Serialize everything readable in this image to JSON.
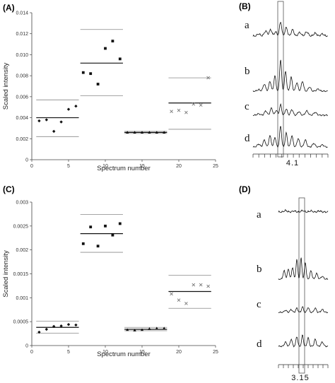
{
  "chart_data": [
    {
      "panel": "(A)",
      "type": "scatter",
      "xlabel": "Spectrum number",
      "ylabel": "Scaled intensity",
      "xlim": [
        0,
        25
      ],
      "ylim": [
        0,
        0.014
      ],
      "xticks": [
        "0",
        "5",
        "10",
        "15",
        "20",
        "25"
      ],
      "yticks": [
        "0",
        "0.002",
        "0.004",
        "0.006",
        "0.008",
        "0.010",
        "0.012",
        "0.014"
      ],
      "groups": [
        {
          "marker": "diamond",
          "x": [
            1,
            2,
            3,
            4,
            5,
            6
          ],
          "y": [
            0.0037,
            0.0038,
            0.0027,
            0.0036,
            0.0048,
            0.0051
          ],
          "mean": 0.004,
          "lower": 0.0022,
          "upper": 0.0057,
          "x_range": [
            1,
            6
          ]
        },
        {
          "marker": "square",
          "x": [
            7,
            8,
            9,
            10,
            11,
            12
          ],
          "y": [
            0.0083,
            0.0082,
            0.0072,
            0.0106,
            0.0113,
            0.0096
          ],
          "mean": 0.0092,
          "lower": 0.0061,
          "upper": 0.0124,
          "x_range": [
            7,
            12
          ]
        },
        {
          "marker": "triangle",
          "x": [
            13,
            14,
            15,
            16,
            17,
            18
          ],
          "y": [
            0.0026,
            0.0026,
            0.0026,
            0.0026,
            0.0026,
            0.0026
          ],
          "mean": 0.0026,
          "lower": 0.0025,
          "upper": 0.0027,
          "x_range": [
            13,
            18
          ]
        },
        {
          "marker": "cross",
          "x": [
            19,
            20,
            21,
            22,
            23,
            24
          ],
          "y": [
            0.0046,
            0.0047,
            0.0045,
            0.0053,
            0.0052,
            0.0078
          ],
          "mean": 0.0054,
          "lower": 0.0029,
          "upper": 0.0078,
          "x_range": [
            19,
            24
          ]
        }
      ]
    },
    {
      "panel": "(C)",
      "type": "scatter",
      "xlabel": "Spectrum number",
      "ylabel": "Scaled intensity",
      "xlim": [
        0,
        25
      ],
      "ylim": [
        0,
        0.003
      ],
      "xticks": [
        "0",
        "5",
        "10",
        "15",
        "20",
        "25"
      ],
      "yticks": [
        "0",
        "0.0005",
        "0.001",
        "0.0015",
        "0.002",
        "0.0025",
        "0.003"
      ],
      "groups": [
        {
          "marker": "diamond",
          "x": [
            1,
            2,
            3,
            4,
            5,
            6
          ],
          "y": [
            0.00028,
            0.00034,
            0.0004,
            0.00041,
            0.00044,
            0.00043
          ],
          "mean": 0.00038,
          "lower": 0.00026,
          "upper": 0.00051,
          "x_range": [
            1,
            6
          ]
        },
        {
          "marker": "square",
          "x": [
            7,
            8,
            9,
            10,
            11,
            12
          ],
          "y": [
            0.00213,
            0.00248,
            0.00208,
            0.0025,
            0.00231,
            0.00255
          ],
          "mean": 0.00234,
          "lower": 0.00195,
          "upper": 0.00274,
          "x_range": [
            7,
            12
          ]
        },
        {
          "marker": "triangle",
          "x": [
            13,
            14,
            15,
            16,
            17,
            18
          ],
          "y": [
            0.00033,
            0.00032,
            0.00033,
            0.00035,
            0.00036,
            0.00036
          ],
          "mean": 0.00034,
          "lower": 0.00031,
          "upper": 0.00038,
          "x_range": [
            13,
            18
          ]
        },
        {
          "marker": "cross",
          "x": [
            19,
            20,
            21,
            22,
            23,
            24
          ],
          "y": [
            0.00108,
            0.00095,
            0.00088,
            0.00127,
            0.00127,
            0.00124
          ],
          "mean": 0.00113,
          "lower": 0.00078,
          "upper": 0.00147,
          "x_range": [
            19,
            24
          ]
        }
      ]
    }
  ],
  "spectra_panels": [
    {
      "panel": "(B)",
      "traces": [
        "a",
        "b",
        "c",
        "d"
      ],
      "axis_label": "4.1"
    },
    {
      "panel": "(D)",
      "traces": [
        "a",
        "b",
        "c",
        "d"
      ],
      "axis_label": "3.15"
    }
  ]
}
